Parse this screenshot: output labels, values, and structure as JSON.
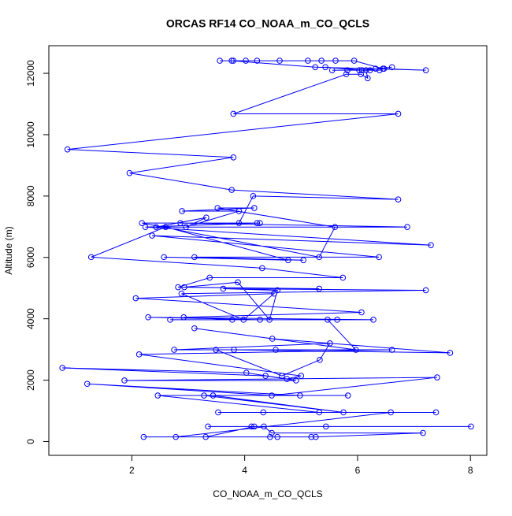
{
  "chart_data": {
    "type": "line",
    "title": "ORCAS RF14 CO_NOAA_m_CO_QCLS",
    "xlabel": "CO_NOAA_m_CO_QCLS",
    "ylabel": "Altitude (m)",
    "color": "#0000ff",
    "xlim": [
      0.53,
      8.29
    ],
    "ylim": [
      -450,
      12900
    ],
    "xticks": [
      2,
      4,
      6,
      8
    ],
    "yticks": [
      0,
      2000,
      4000,
      6000,
      8000,
      10000,
      12000
    ],
    "x": [
      4.58,
      5.26,
      7.16,
      4.48,
      4.34,
      8.01,
      4.12,
      3.35,
      5.44,
      4.17,
      3.31,
      2.21,
      5.18,
      4.45,
      2.78,
      6.59,
      3.53,
      4.33,
      7.39,
      5.32,
      2.46,
      5.83,
      3.28,
      5.75,
      3.44,
      4.98,
      1.21,
      4.48,
      7.41,
      1.87,
      4.91,
      4.37,
      0.77,
      4.03,
      4.75,
      5.0,
      2.13,
      6.61,
      3.49,
      4.66,
      5.33,
      5.51,
      2.75,
      4.55,
      3.81,
      7.64,
      4.49,
      3.11,
      5.97,
      5.47,
      2.68,
      6.28,
      2.29,
      4.27,
      5.64,
      3.78,
      2.92,
      6.07,
      2.07,
      4.52,
      3.98,
      2.88,
      7.21,
      3.62,
      4.58,
      4.44,
      3.88,
      2.93,
      5.32,
      2.82,
      3.38,
      5.74,
      4.31,
      1.28,
      2.6,
      4.77,
      2.57,
      5.04,
      3.11,
      6.38,
      2.36,
      7.3,
      2.24,
      4.22,
      2.18,
      5.32,
      5.6,
      3.52,
      4.17,
      2.89,
      3.9,
      2.96,
      3.32,
      2.43,
      6.88,
      2.86,
      4.27,
      3.9,
      4.15,
      6.72,
      3.77,
      1.96,
      3.8,
      0.86,
      6.72,
      3.8,
      5.8,
      6.06,
      6.18,
      6.15,
      5.43,
      6.03,
      6.22,
      6.32,
      6.45,
      5.94,
      3.56,
      3.8,
      4.02,
      4.22,
      4.62,
      5.12,
      5.36,
      5.61,
      3.77,
      5.25,
      7.21,
      6.47,
      6.39,
      5.55,
      5.82,
      6.08,
      6.61
    ],
    "values": [
      150,
      150,
      280,
      280,
      490,
      490,
      490,
      490,
      490,
      490,
      150,
      150,
      150,
      150,
      150,
      950,
      950,
      950,
      950,
      950,
      1500,
      1500,
      1500,
      950,
      1500,
      1500,
      1880,
      1500,
      2090,
      1990,
      1990,
      2140,
      2400,
      2240,
      2040,
      2140,
      2840,
      2990,
      2990,
      2140,
      2660,
      3200,
      2990,
      2990,
      2990,
      2890,
      3350,
      3690,
      2990,
      3970,
      3970,
      3970,
      4050,
      3970,
      3970,
      3970,
      4050,
      4210,
      4670,
      4820,
      3970,
      4820,
      4930,
      4980,
      4930,
      3970,
      5190,
      5030,
      4980,
      5030,
      5340,
      5340,
      5650,
      6010,
      6990,
      5910,
      6010,
      5910,
      6010,
      6010,
      6710,
      6400,
      6990,
      7120,
      7120,
      6010,
      6990,
      7610,
      7610,
      7510,
      7510,
      6990,
      7300,
      6990,
      6990,
      7120,
      7120,
      7120,
      8000,
      7890,
      8200,
      8750,
      9260,
      9520,
      10680,
      10680,
      11970,
      11970,
      11840,
      12100,
      12200,
      12100,
      12100,
      12150,
      12150,
      12410,
      12410,
      12410,
      12410,
      12410,
      12410,
      12410,
      12410,
      12410,
      12410,
      12200,
      12100,
      12150,
      12100,
      12100,
      12100,
      12100,
      12200
    ]
  }
}
